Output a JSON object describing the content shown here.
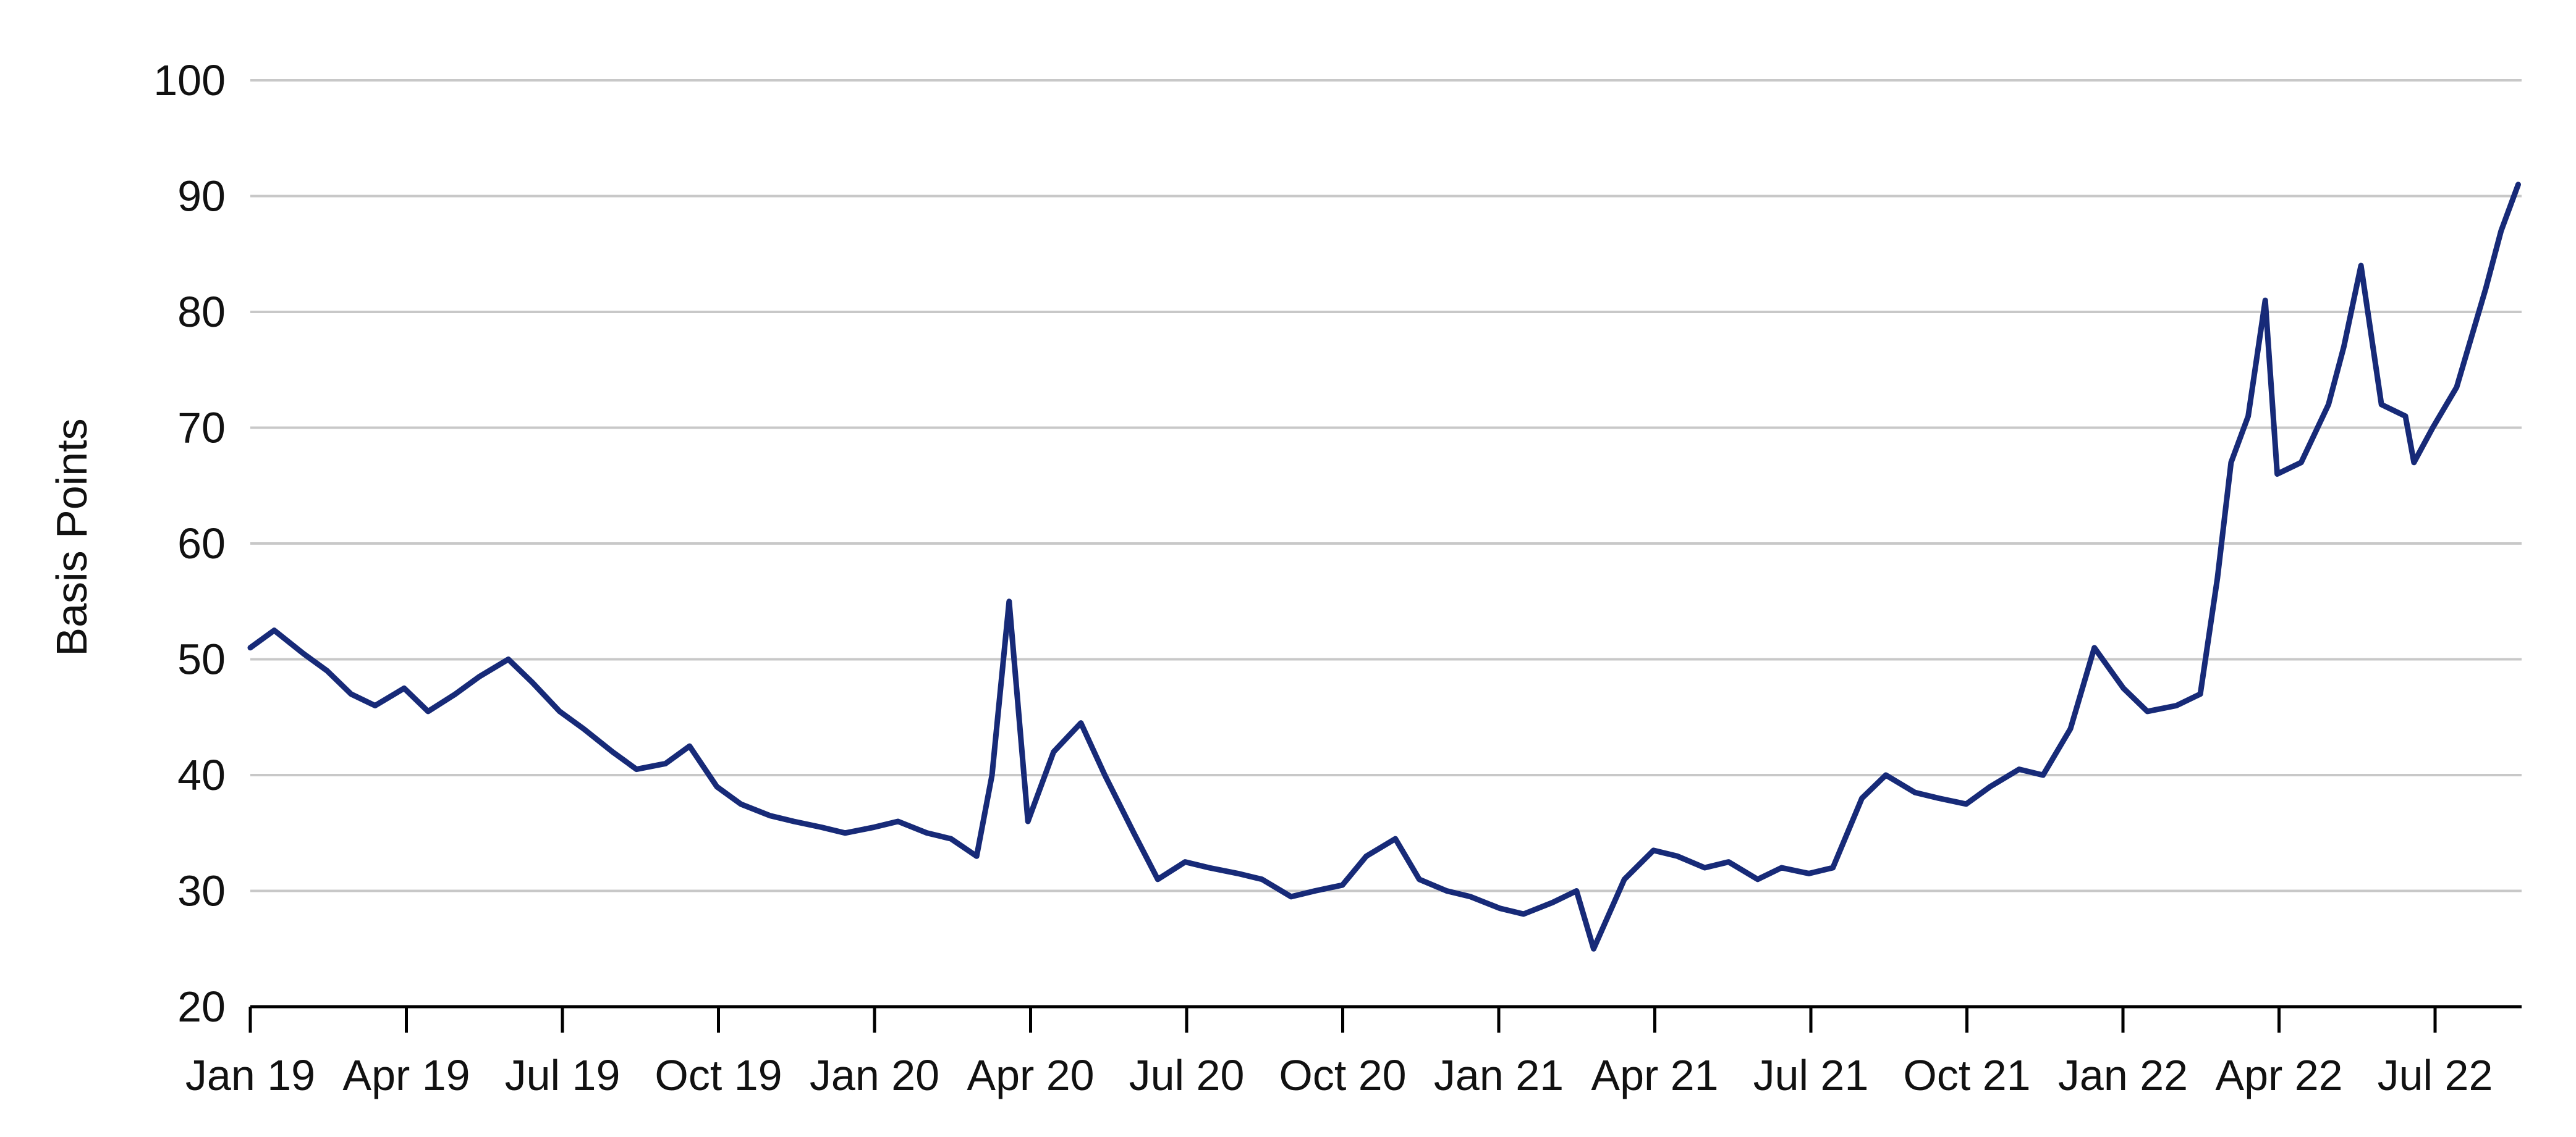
{
  "chart_data": {
    "type": "line",
    "title": "",
    "xlabel": "",
    "ylabel": "Basis Points",
    "ylim": [
      20,
      100
    ],
    "yticks": [
      20,
      30,
      40,
      50,
      60,
      70,
      80,
      90,
      100
    ],
    "grid": true,
    "legend": "none",
    "line_color": "#172a78",
    "grid_color": "#c8c8c8",
    "xticks": [
      "Jan 19",
      "Apr 19",
      "Jul 19",
      "Oct 19",
      "Jan 20",
      "Apr 20",
      "Jul 20",
      "Oct 20",
      "Jan 21",
      "Apr 21",
      "Jul 21",
      "Oct 21",
      "Jan 22",
      "Apr 22",
      "Jul 22"
    ],
    "series": [
      {
        "x": [
          "2019-01-01",
          "2019-01-15",
          "2019-02-01",
          "2019-02-15",
          "2019-03-01",
          "2019-03-15",
          "2019-04-01",
          "2019-04-15",
          "2019-05-01",
          "2019-05-15",
          "2019-06-01",
          "2019-06-15",
          "2019-07-01",
          "2019-07-15",
          "2019-08-01",
          "2019-08-15",
          "2019-09-01",
          "2019-09-15",
          "2019-10-01",
          "2019-10-15",
          "2019-11-01",
          "2019-11-15",
          "2019-12-01",
          "2019-12-15",
          "2020-01-01",
          "2020-01-15",
          "2020-02-01",
          "2020-02-15",
          "2020-03-01",
          "2020-03-10",
          "2020-03-20",
          "2020-03-31",
          "2020-04-15",
          "2020-05-01",
          "2020-05-15",
          "2020-06-01",
          "2020-06-15",
          "2020-07-01",
          "2020-07-15",
          "2020-08-01",
          "2020-08-15",
          "2020-09-01",
          "2020-09-15",
          "2020-10-01",
          "2020-10-15",
          "2020-11-01",
          "2020-11-15",
          "2020-12-01",
          "2020-12-15",
          "2021-01-01",
          "2021-01-15",
          "2021-02-01",
          "2021-02-15",
          "2021-02-25",
          "2021-03-15",
          "2021-04-01",
          "2021-04-15",
          "2021-05-01",
          "2021-05-15",
          "2021-06-01",
          "2021-06-15",
          "2021-07-01",
          "2021-07-15",
          "2021-08-01",
          "2021-08-15",
          "2021-09-01",
          "2021-09-15",
          "2021-10-01",
          "2021-10-15",
          "2021-11-01",
          "2021-11-15",
          "2021-12-01",
          "2021-12-15",
          "2022-01-01",
          "2022-01-15",
          "2022-02-01",
          "2022-02-15",
          "2022-02-25",
          "2022-03-05",
          "2022-03-15",
          "2022-03-25",
          "2022-04-01",
          "2022-04-15",
          "2022-05-01",
          "2022-05-10",
          "2022-05-20",
          "2022-06-01",
          "2022-06-15",
          "2022-06-20",
          "2022-07-01",
          "2022-07-15",
          "2022-08-01",
          "2022-08-10",
          "2022-08-20"
        ],
        "values": [
          51,
          52.5,
          50.5,
          49,
          47,
          46,
          47.5,
          45.5,
          47,
          48.5,
          50,
          48,
          45.5,
          44,
          42,
          40.5,
          41,
          42.5,
          39,
          37.5,
          36.5,
          36,
          35.5,
          35,
          35.5,
          36,
          35,
          34.5,
          33,
          40,
          55,
          36,
          42,
          44.5,
          40,
          35,
          31,
          32.5,
          32,
          31.5,
          31,
          29.5,
          30,
          30.5,
          33,
          34.5,
          31,
          30,
          29.5,
          28.5,
          28,
          29,
          30,
          25,
          31,
          33.5,
          33,
          32,
          32.5,
          31,
          32,
          31.5,
          32,
          38,
          40,
          38.5,
          38,
          37.5,
          39,
          40.5,
          40,
          44,
          51,
          47.5,
          45.5,
          46,
          47,
          57,
          67,
          71,
          81,
          66,
          67,
          72,
          77,
          84,
          72,
          71,
          67,
          70,
          73.5,
          82,
          87,
          91
        ]
      }
    ]
  }
}
